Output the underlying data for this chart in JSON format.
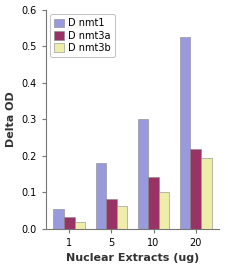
{
  "categories": [
    "1",
    "5",
    "10",
    "20"
  ],
  "series": {
    "Dnmt1": [
      0.055,
      0.18,
      0.3,
      0.525
    ],
    "Dnmt3a": [
      0.032,
      0.083,
      0.143,
      0.218
    ],
    "Dnmt3b": [
      0.02,
      0.063,
      0.1,
      0.195
    ]
  },
  "colors": {
    "Dnmt1": "#9999dd",
    "Dnmt3a": "#993366",
    "Dnmt3b": "#eeeeaa"
  },
  "legend_labels": [
    "D nmt1",
    "D nmt3a",
    "D nmt3b"
  ],
  "xlabel": "Nuclear Extracts (ug)",
  "ylabel": "Delta OD",
  "ylim": [
    0,
    0.6
  ],
  "yticks": [
    0.0,
    0.1,
    0.2,
    0.3,
    0.4,
    0.5,
    0.6
  ],
  "fig_bg": "#ffffff",
  "plot_bg": "#ffffff",
  "bar_width": 0.25,
  "bar_edge_color": "#888888",
  "bar_edge_width": 0.4,
  "spine_color": "#777777",
  "tick_fontsize": 7,
  "label_fontsize": 8,
  "legend_fontsize": 7
}
